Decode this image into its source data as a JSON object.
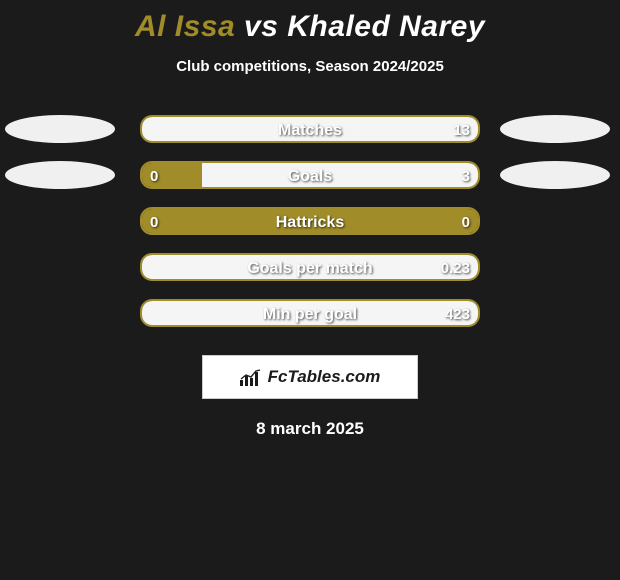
{
  "title": {
    "player1": "Al Issa",
    "vs": "vs",
    "player2": "Khaled Narey"
  },
  "subtitle": "Club competitions, Season 2024/2025",
  "colors": {
    "accent": "#a08c28",
    "fillLight": "#f5f5f5",
    "background": "#1b1b1b",
    "ellipse": "#f0f0f0"
  },
  "rows": [
    {
      "metric": "Matches",
      "leftVal": "",
      "rightVal": "13",
      "leftPct": 0,
      "rightPct": 100,
      "showLeftEllipse": true,
      "showRightEllipse": true
    },
    {
      "metric": "Goals",
      "leftVal": "0",
      "rightVal": "3",
      "leftPct": 18,
      "rightPct": 82,
      "showLeftEllipse": true,
      "showRightEllipse": true
    },
    {
      "metric": "Hattricks",
      "leftVal": "0",
      "rightVal": "0",
      "leftPct": 100,
      "rightPct": 0,
      "showLeftEllipse": false,
      "showRightEllipse": false
    },
    {
      "metric": "Goals per match",
      "leftVal": "",
      "rightVal": "0.23",
      "leftPct": 0,
      "rightPct": 100,
      "showLeftEllipse": false,
      "showRightEllipse": false
    },
    {
      "metric": "Min per goal",
      "leftVal": "",
      "rightVal": "423",
      "leftPct": 0,
      "rightPct": 100,
      "showLeftEllipse": false,
      "showRightEllipse": false
    }
  ],
  "logo": {
    "text": "FcTables.com"
  },
  "date": "8 march 2025"
}
